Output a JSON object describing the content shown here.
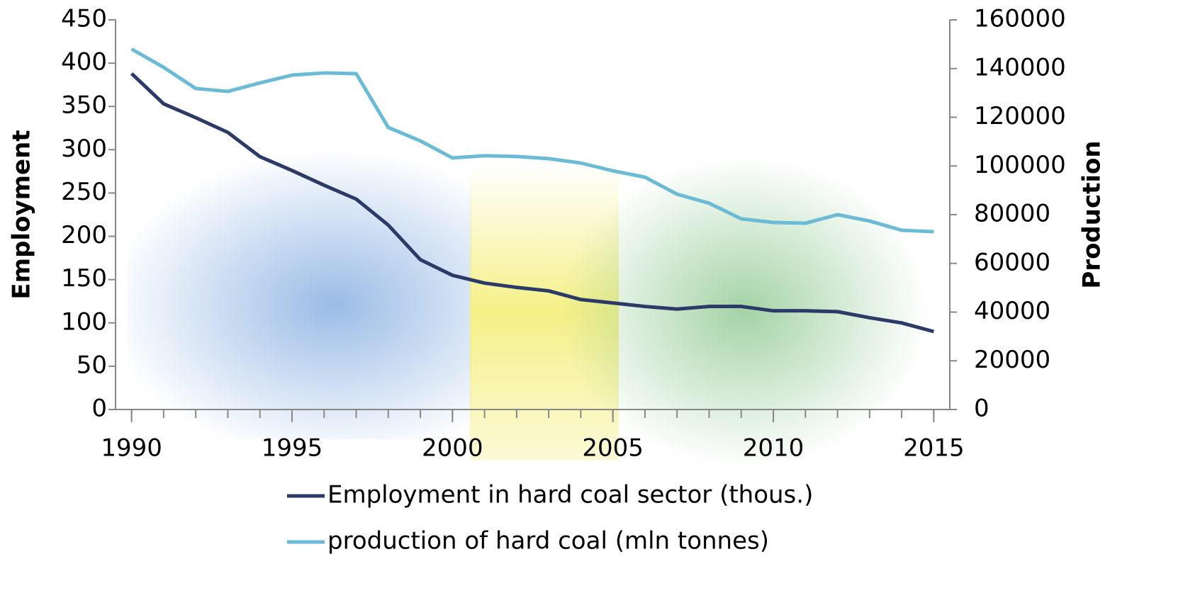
{
  "chart_data": {
    "type": "line",
    "x": [
      1990,
      1991,
      1992,
      1993,
      1994,
      1995,
      1996,
      1997,
      1998,
      1999,
      2000,
      2001,
      2002,
      2003,
      2004,
      2005,
      2006,
      2007,
      2008,
      2009,
      2010,
      2011,
      2012,
      2013,
      2014,
      2015
    ],
    "series": [
      {
        "name": "Employment in hard coal sector (thous.)",
        "color": "#2b3a67",
        "values": [
          388,
          353,
          337,
          320,
          292,
          276,
          259,
          243,
          213,
          173,
          155,
          146,
          141,
          137,
          127,
          123,
          119,
          116,
          119,
          119,
          114,
          114,
          113,
          106,
          100,
          90
        ]
      },
      {
        "name": "production of hard coal (mln tonnes)",
        "color": "#6bbad6",
        "axis": "y2",
        "values": [
          148000,
          140500,
          131800,
          130600,
          134100,
          137300,
          138200,
          137900,
          115800,
          110300,
          103300,
          104200,
          103900,
          103000,
          101200,
          98000,
          95400,
          88400,
          84700,
          78300,
          76800,
          76500,
          80000,
          77400,
          73600,
          73000
        ]
      }
    ],
    "y_label": "Employment",
    "y2_label": "Production",
    "xlim": [
      1989.5,
      2015.5
    ],
    "xticks": [
      1990,
      1995,
      2000,
      2005,
      2010,
      2015
    ],
    "ylim": [
      0,
      450
    ],
    "yticks": [
      0,
      50,
      100,
      150,
      200,
      250,
      300,
      350,
      400,
      450
    ],
    "y2lim": [
      0,
      160000
    ],
    "y2ticks": [
      0,
      20000,
      40000,
      60000,
      80000,
      100000,
      120000,
      140000,
      160000
    ],
    "legend": "bottom"
  }
}
